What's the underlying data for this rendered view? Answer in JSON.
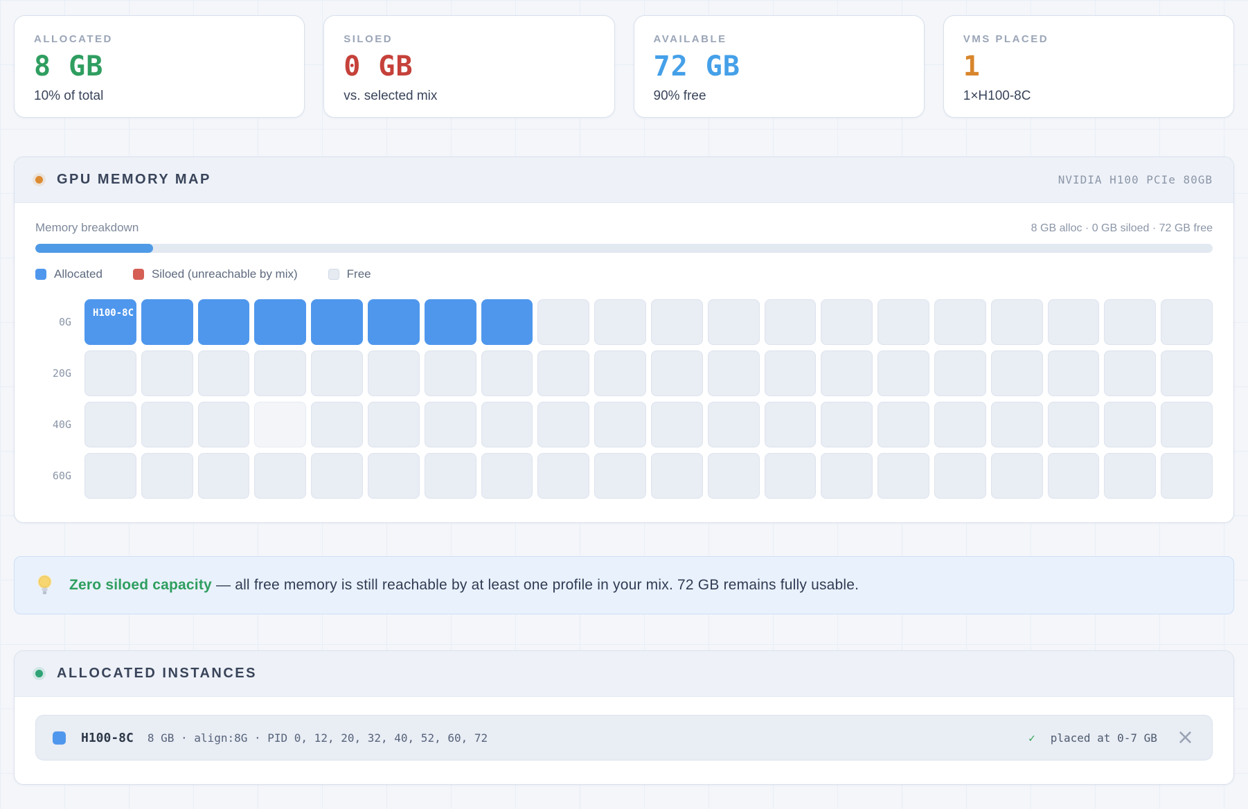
{
  "colors": {
    "allocated_green": "#2f9e60",
    "siloed_red": "#c5413a",
    "available_blue": "#45a0e8",
    "vms_orange": "#d8862d",
    "alloc_cell_blue": "#4f97ed",
    "siloed_swatch_red": "#d55f55",
    "free_cell_gray": "#e9edf4"
  },
  "stats": [
    {
      "label": "ALLOCATED",
      "value": "8 GB",
      "sub": "10% of total"
    },
    {
      "label": "SILOED",
      "value": "0 GB",
      "sub": "vs. selected mix"
    },
    {
      "label": "AVAILABLE",
      "value": "72 GB",
      "sub": "90% free"
    },
    {
      "label": "VMS PLACED",
      "value": "1",
      "sub": "1×H100-8C"
    }
  ],
  "memory_map": {
    "title": "GPU MEMORY MAP",
    "device": "NVIDIA H100 PCIe 80GB",
    "breakdown_label": "Memory breakdown",
    "breakdown_stats": "8 GB alloc · 0 GB siloed · 72 GB free",
    "progress_pct": 10,
    "legend": [
      {
        "label": "Allocated"
      },
      {
        "label": "Siloed (unreachable by mix)"
      },
      {
        "label": "Free"
      }
    ],
    "vm_label": "H100-8C",
    "rows": [
      {
        "label": "0G",
        "cells": "AAAAAAAAFFFFFFFFFFFF"
      },
      {
        "label": "20G",
        "cells": "FFFFFFFFFFFFFFFFFFFF"
      },
      {
        "label": "40G",
        "cells": "FFFHFFFFFFFFFFFFFFFF"
      },
      {
        "label": "60G",
        "cells": "FFFFFFFFFFFFFFFFFFFF"
      }
    ]
  },
  "banner": {
    "strong": "Zero siloed capacity",
    "text": " — all free memory is still reachable by at least one profile in your mix. 72 GB remains fully usable."
  },
  "instances": {
    "title": "ALLOCATED INSTANCES",
    "items": [
      {
        "name": "H100-8C",
        "details": "8 GB · align:8G · PID 0, 12, 20, 32, 40, 52, 60, 72",
        "check": "✓",
        "status": "placed at 0-7 GB",
        "close": "×"
      }
    ]
  }
}
